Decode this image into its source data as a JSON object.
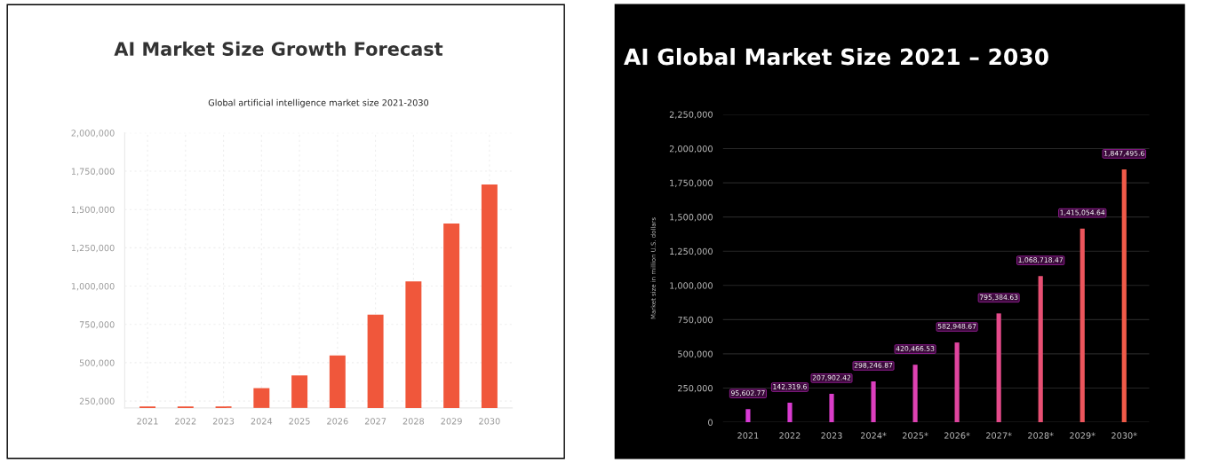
{
  "chart_data": [
    {
      "type": "bar",
      "title": "AI Market Size Growth Forecast",
      "subtitle": "Global artificial intelligence market size 2021-2030",
      "categories": [
        "2021",
        "2022",
        "2023",
        "2024",
        "2025",
        "2026",
        "2027",
        "2028",
        "2029",
        "2030"
      ],
      "values": [
        215000,
        215000,
        215000,
        334000,
        417000,
        547000,
        814000,
        1031000,
        1408000,
        1663000
      ],
      "color": "#f0573b",
      "ylim": [
        205000,
        2000000
      ],
      "yticks": [
        {
          "value": 250000,
          "label": "250,000"
        },
        {
          "value": 500000,
          "label": "500,000"
        },
        {
          "value": 750000,
          "label": "750,000"
        },
        {
          "value": 1000000,
          "label": "1,000,000"
        },
        {
          "value": 1250000,
          "label": "1,250,000"
        },
        {
          "value": 1500000,
          "label": "1,500,000"
        },
        {
          "value": 1750000,
          "label": "1,750,000"
        },
        {
          "value": 2000000,
          "label": "2,000,000"
        }
      ],
      "grid": true
    },
    {
      "type": "bar",
      "title": "AI Global Market Size 2021 – 2030",
      "ylabel": "Market size in million U.S. dollars",
      "categories": [
        "2021",
        "2022",
        "2023",
        "2024*",
        "2025*",
        "2026*",
        "2027*",
        "2028*",
        "2029*",
        "2030*"
      ],
      "values": [
        95602.77,
        142319.6,
        207902.42,
        298246.87,
        420466.53,
        582948.67,
        795384.63,
        1068718.47,
        1415054.64,
        1847495.6
      ],
      "value_labels": [
        "95,602.77",
        "142,319.6",
        "207,902.42",
        "298,246.87",
        "420,466.53",
        "582,948.67",
        "795,384.63",
        "1,068,718.47",
        "1,415,054.64",
        "1,847,495.6"
      ],
      "colors": [
        "#d93bd6",
        "#d93bd0",
        "#da3dc8",
        "#dc3fbe",
        "#de42b2",
        "#e0459f",
        "#e44a8a",
        "#e84f73",
        "#ec555c",
        "#f05a48"
      ],
      "ylim": [
        0,
        2250000
      ],
      "yticks": [
        0,
        {
          "value": 250000,
          "label": "250,000"
        },
        {
          "value": 500000,
          "label": "500,000"
        },
        {
          "value": 750000,
          "label": "750,000"
        },
        {
          "value": 1000000,
          "label": "1,000,000"
        },
        {
          "value": 1250000,
          "label": "1,250,000"
        },
        {
          "value": 1500000,
          "label": "1,500,000"
        },
        {
          "value": 1750000,
          "label": "1,750,000"
        },
        {
          "value": 2000000,
          "label": "2,000,000"
        },
        {
          "value": 2250000,
          "label": "2,250,000"
        }
      ],
      "grid": "y"
    }
  ]
}
